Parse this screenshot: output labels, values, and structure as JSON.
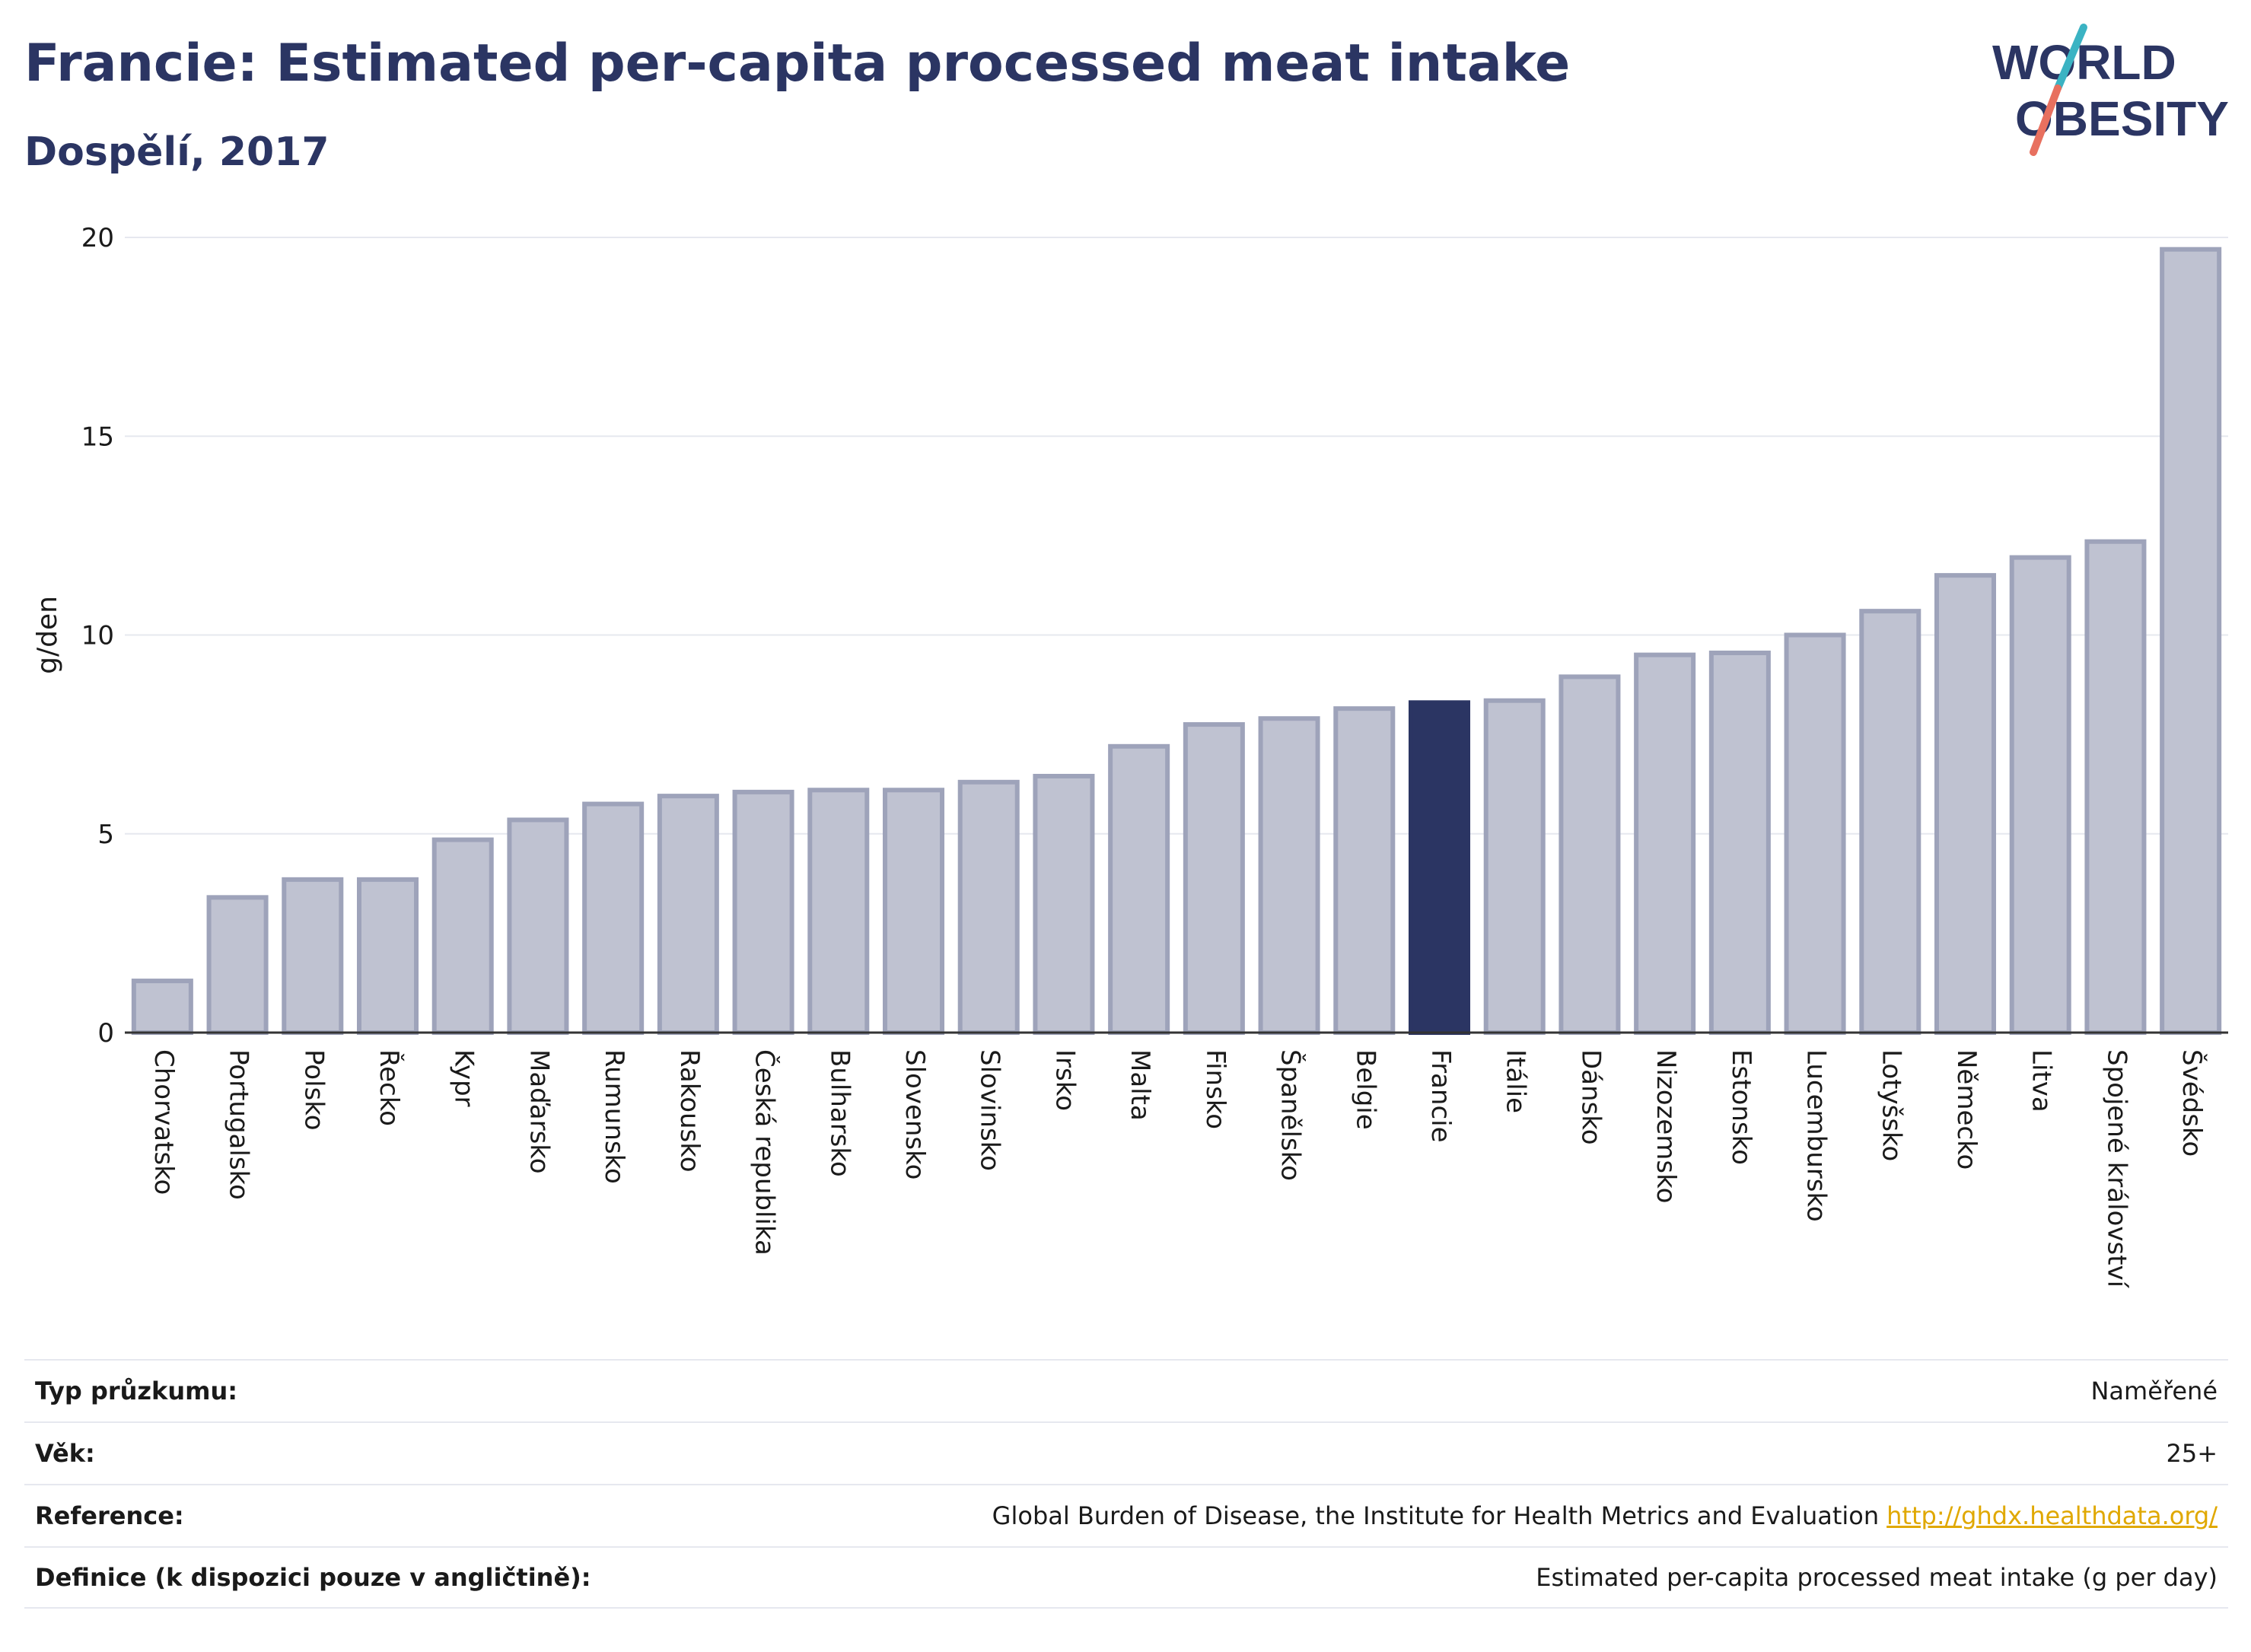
{
  "header": {
    "title": "Francie: Estimated per-capita processed meat intake",
    "subtitle": "Dospělí, 2017"
  },
  "logo": {
    "line1": "WORLD",
    "line2": "OBESITY",
    "colors": {
      "text": "#2b3563",
      "slash_teal": "#3bb3c3",
      "slash_coral": "#e8705f"
    }
  },
  "colors": {
    "highlight_bar": "#2b3563",
    "other_bar_fill": "#bfc2d1",
    "other_bar_stroke": "#9ea3ba",
    "grid": "#e6e8ef",
    "axis": "#333333",
    "text": "#1a1a1a",
    "link": "#e0a800"
  },
  "chart_data": {
    "type": "bar",
    "categories": [
      "Chorvatsko",
      "Portugalsko",
      "Polsko",
      "Řecko",
      "Kypr",
      "Maďarsko",
      "Rumunsko",
      "Rakousko",
      "Česká republika",
      "Bulharsko",
      "Slovensko",
      "Slovinsko",
      "Irsko",
      "Malta",
      "Finsko",
      "Španělsko",
      "Belgie",
      "Francie",
      "Itálie",
      "Dánsko",
      "Nizozemsko",
      "Estonsko",
      "Lucembursko",
      "Lotyšsko",
      "Německo",
      "Litva",
      "Spojené království",
      "Švédsko"
    ],
    "values": [
      1.3,
      3.4,
      3.85,
      3.85,
      4.85,
      5.35,
      5.75,
      5.95,
      6.05,
      6.1,
      6.1,
      6.3,
      6.45,
      7.2,
      7.75,
      7.9,
      8.15,
      8.3,
      8.35,
      8.95,
      9.5,
      9.55,
      10.0,
      10.6,
      11.5,
      11.95,
      12.35,
      19.7
    ],
    "highlight": "Francie",
    "ylabel": "g/den",
    "ylim": [
      0,
      20
    ],
    "yticks": [
      0,
      5,
      10,
      15,
      20
    ],
    "grid": true
  },
  "info": [
    {
      "label": "Typ průzkumu:",
      "value": "Naměřené"
    },
    {
      "label": "Věk:",
      "value": "25+"
    },
    {
      "label": "Reference:",
      "value": "Global Burden of Disease, the Institute for Health Metrics and Evaluation",
      "link": "http://ghdx.healthdata.org/"
    },
    {
      "label": "Definice (k dispozici pouze v angličtině):",
      "value": "Estimated per-capita processed meat intake (g per day)"
    }
  ]
}
